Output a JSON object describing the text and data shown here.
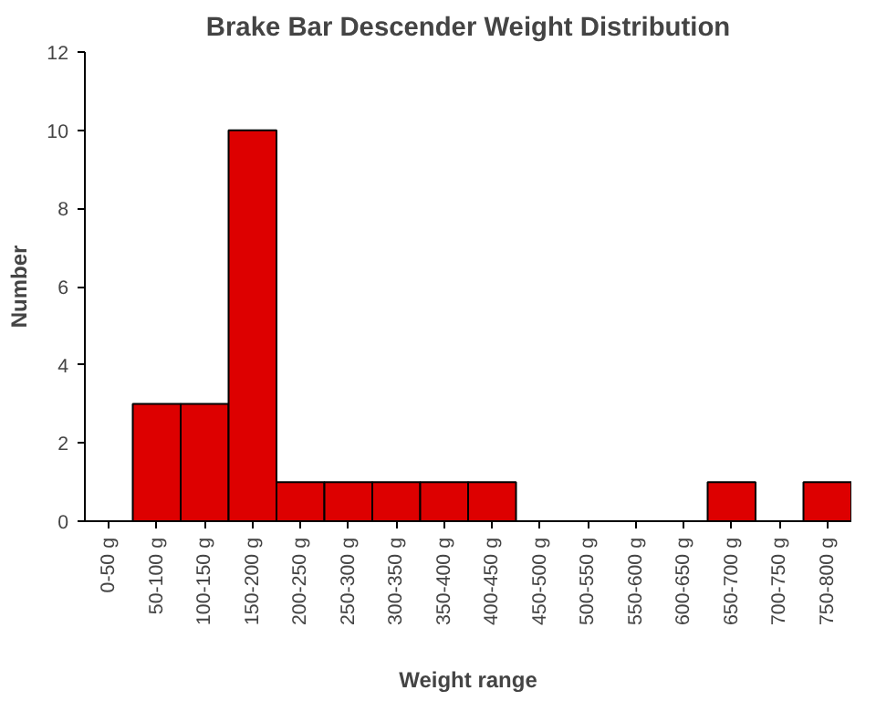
{
  "chart_data": {
    "type": "bar",
    "title": "Brake Bar Descender Weight Distribution",
    "xlabel": "Weight range",
    "ylabel": "Number",
    "categories": [
      "0-50 g",
      "50-100 g",
      "100-150 g",
      "150-200 g",
      "200-250 g",
      "250-300 g",
      "300-350 g",
      "350-400 g",
      "400-450 g",
      "450-500 g",
      "500-550 g",
      "550-600 g",
      "600-650 g",
      "650-700 g",
      "700-750 g",
      "750-800 g"
    ],
    "values": [
      0,
      3,
      3,
      10,
      1,
      1,
      1,
      1,
      1,
      0,
      0,
      0,
      0,
      1,
      0,
      1
    ],
    "color": "#dd0000",
    "ylim": [
      0,
      12
    ],
    "yticks": [
      0,
      2,
      4,
      6,
      8,
      10,
      12
    ],
    "grid": false
  }
}
